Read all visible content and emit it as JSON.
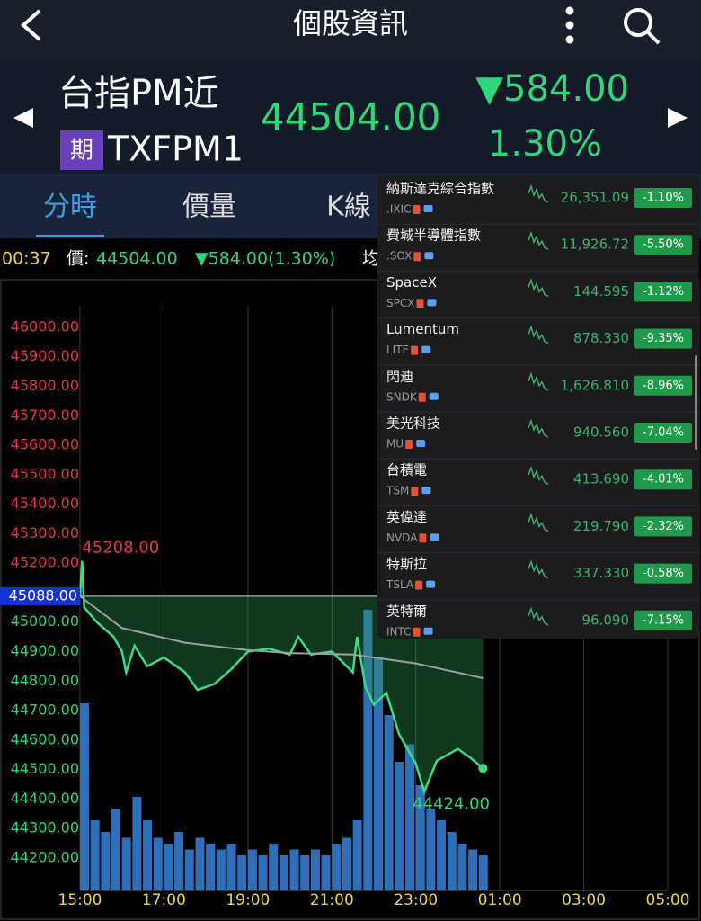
{
  "header": {
    "title": "個股資訊"
  },
  "quote": {
    "name": "台指PM近",
    "badge": "期",
    "code": "TXFPM1",
    "price": "44504.00",
    "change": "▼584.00",
    "percent": "1.30%"
  },
  "tabs": [
    "分時",
    "價量",
    "K線"
  ],
  "info_bar": {
    "time": "00:37",
    "label": "價:",
    "price": "44504.00",
    "change": "▼584.00(1.30%)",
    "avg_label": "均"
  },
  "chart_data": {
    "type": "line",
    "xlim": [
      0,
      14
    ],
    "ylim": [
      44090,
      46073
    ],
    "y2lim": [
      0,
      100
    ],
    "xticks": [
      {
        "value": 0,
        "label": "15:00"
      },
      {
        "value": 2,
        "label": "17:00"
      },
      {
        "value": 4,
        "label": "19:00"
      },
      {
        "value": 6,
        "label": "21:00"
      },
      {
        "value": 8,
        "label": "23:00"
      },
      {
        "value": 10,
        "label": "01:00"
      },
      {
        "value": 12,
        "label": "03:00"
      },
      {
        "value": 14,
        "label": "05:00"
      }
    ],
    "yticks": [
      {
        "value": 46000,
        "label": "46000.00"
      },
      {
        "value": 45900,
        "label": "45900.00"
      },
      {
        "value": 45800,
        "label": "45800.00"
      },
      {
        "value": 45700,
        "label": "45700.00"
      },
      {
        "value": 45600,
        "label": "45600.00"
      },
      {
        "value": 45500,
        "label": "45500.00"
      },
      {
        "value": 45400,
        "label": "45400.00"
      },
      {
        "value": 45300,
        "label": "45300.00"
      },
      {
        "value": 45200,
        "label": "45200.00"
      },
      {
        "value": 45000,
        "label": "45000.00"
      },
      {
        "value": 44900,
        "label": "44900.00"
      },
      {
        "value": 44800,
        "label": "44800.00"
      },
      {
        "value": 44700,
        "label": "44700.00"
      },
      {
        "value": 44600,
        "label": "44600.00"
      },
      {
        "value": 44500,
        "label": "44500.00"
      },
      {
        "value": 44400,
        "label": "44400.00"
      },
      {
        "value": 44300,
        "label": "44300.00"
      },
      {
        "value": 44200,
        "label": "44200.00"
      }
    ],
    "reference": {
      "value": 45088,
      "label": "45088.00"
    },
    "series": [
      {
        "color": "#3ddc84",
        "x": [
          0,
          0.05,
          0.1,
          0.4,
          0.8,
          1.0,
          1.1,
          1.3,
          1.6,
          2.0,
          2.5,
          2.8,
          3.2,
          3.6,
          4.0,
          4.5,
          5.0,
          5.2,
          5.5,
          6.0,
          6.5,
          6.6,
          6.8,
          7.0,
          7.3,
          7.6,
          8.0,
          8.2,
          8.5,
          9.0,
          9.3,
          9.6
        ],
        "values": [
          45088,
          45208,
          45050,
          45000,
          44950,
          44900,
          44830,
          44920,
          44850,
          44880,
          44830,
          44770,
          44790,
          44840,
          44900,
          44910,
          44890,
          44950,
          44890,
          44900,
          44830,
          44950,
          44780,
          44720,
          44760,
          44620,
          44520,
          44424,
          44530,
          44570,
          44540,
          44504
        ]
      },
      {
        "color": "#a0a0a0",
        "x": [
          0,
          1,
          2.5,
          4,
          5,
          6.5,
          8,
          9.6
        ],
        "values": [
          45088,
          44980,
          44930,
          44905,
          44895,
          44890,
          44860,
          44810
        ]
      }
    ],
    "volume": {
      "color": "#2f6fba",
      "x": [
        0,
        0.25,
        0.5,
        0.75,
        1,
        1.25,
        1.5,
        1.75,
        2,
        2.25,
        2.5,
        2.75,
        3,
        3.25,
        3.5,
        3.75,
        4,
        4.25,
        4.5,
        4.75,
        5,
        5.25,
        5.5,
        5.75,
        6,
        6.25,
        6.5,
        6.75,
        7,
        7.25,
        7.5,
        7.75,
        8,
        8.25,
        8.5,
        8.75,
        9,
        9.25,
        9.5
      ],
      "values": [
        32,
        12,
        10,
        14,
        9,
        16,
        12,
        9,
        8,
        10,
        7,
        9,
        8,
        7,
        8,
        6,
        7,
        6,
        8,
        6,
        7,
        6,
        7,
        6,
        8,
        9,
        12,
        48,
        40,
        30,
        22,
        25,
        18,
        14,
        12,
        10,
        8,
        7,
        6
      ]
    },
    "annotations": [
      {
        "x": 0.05,
        "y": 45208,
        "label": "45208.00"
      },
      {
        "x": 8.2,
        "y": 44424,
        "label": "44424.00"
      }
    ]
  },
  "watchlist": [
    {
      "name": "納斯達克綜合指數",
      "code": ".IXIC",
      "price": "26,351.09",
      "change": "-1.10%"
    },
    {
      "name": "費城半導體指數",
      "code": ".SOX",
      "price": "11,926.72",
      "change": "-5.50%"
    },
    {
      "name": "SpaceX",
      "code": "SPCX",
      "price": "144.595",
      "change": "-1.12%"
    },
    {
      "name": "Lumentum",
      "code": "LITE",
      "price": "878.330",
      "change": "-9.35%"
    },
    {
      "name": "閃迪",
      "code": "SNDK",
      "price": "1,626.810",
      "change": "-8.96%"
    },
    {
      "name": "美光科技",
      "code": "MU",
      "price": "940.560",
      "change": "-7.04%"
    },
    {
      "name": "台積電",
      "code": "TSM",
      "price": "413.690",
      "change": "-4.01%"
    },
    {
      "name": "英偉達",
      "code": "NVDA",
      "price": "219.790",
      "change": "-2.32%"
    },
    {
      "name": "特斯拉",
      "code": "TSLA",
      "price": "337.330",
      "change": "-0.58%"
    },
    {
      "name": "英特爾",
      "code": "INTC",
      "price": "96.090",
      "change": "-7.15%"
    }
  ]
}
